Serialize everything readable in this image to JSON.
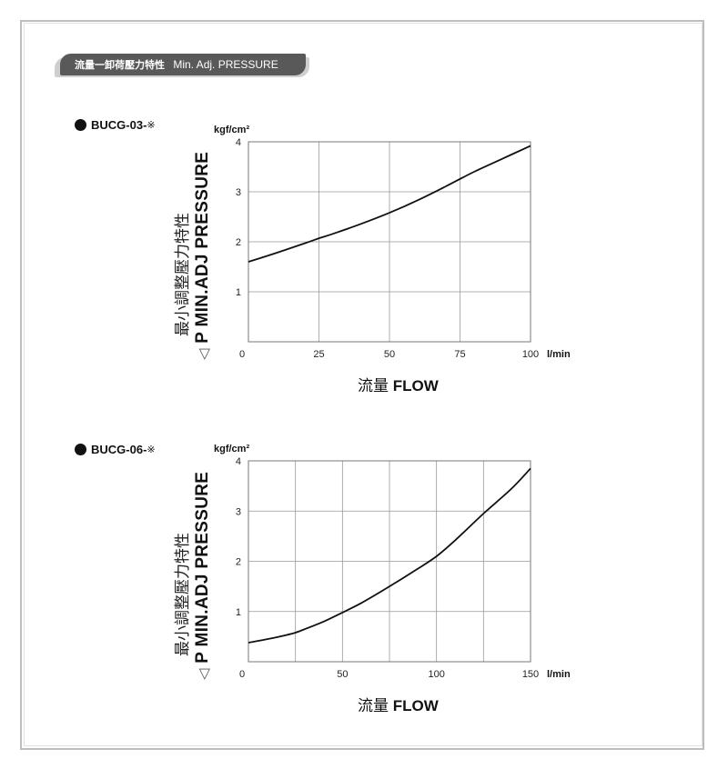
{
  "header": {
    "title_jp": "流量一卸荷壓力特性",
    "title_en": "Min. Adj. PRESSURE"
  },
  "y_axis_label": {
    "jp": "最小調整壓力特性",
    "en": "P MIN.ADJ PRESSURE",
    "symbol": "◁"
  },
  "x_axis_label": {
    "jp": "流量",
    "en": "FLOW"
  },
  "chart_data": [
    {
      "type": "line",
      "model_label": "BUCG-03-",
      "model_mark": "※",
      "xlabel": "l/min",
      "ylabel": "kgf/cm²",
      "xlim": [
        0,
        100
      ],
      "ylim": [
        0,
        4
      ],
      "xticks": [
        0,
        25,
        50,
        75,
        100
      ],
      "xtick_labels": [
        "0",
        "25",
        "50",
        "75",
        "100"
      ],
      "yticks": [
        1,
        2,
        3,
        4
      ],
      "ytick_labels": [
        "1",
        "2",
        "3",
        "4"
      ],
      "grid": true,
      "series": [
        {
          "x": [
            0,
            10,
            20,
            25,
            30,
            40,
            50,
            60,
            70,
            80,
            90,
            100
          ],
          "y": [
            1.6,
            1.78,
            1.97,
            2.07,
            2.16,
            2.36,
            2.58,
            2.83,
            3.11,
            3.4,
            3.66,
            3.92
          ]
        }
      ]
    },
    {
      "type": "line",
      "model_label": "BUCG-06-",
      "model_mark": "※",
      "xlabel": "l/min",
      "ylabel": "kgf/cm²",
      "xlim": [
        0,
        150
      ],
      "ylim": [
        0,
        4
      ],
      "xticks": [
        0,
        25,
        50,
        75,
        100,
        125,
        150
      ],
      "xtick_labels": [
        "0",
        "",
        "50",
        "",
        "100",
        "",
        "150"
      ],
      "yticks": [
        1,
        2,
        3,
        4
      ],
      "ytick_labels": [
        "1",
        "2",
        "3",
        "4"
      ],
      "grid": true,
      "series": [
        {
          "x": [
            0,
            10,
            20,
            25,
            30,
            40,
            50,
            60,
            75,
            90,
            100,
            110,
            125,
            140,
            150
          ],
          "y": [
            0.38,
            0.45,
            0.53,
            0.58,
            0.65,
            0.8,
            0.98,
            1.17,
            1.5,
            1.85,
            2.1,
            2.42,
            2.95,
            3.45,
            3.85
          ]
        }
      ]
    }
  ]
}
